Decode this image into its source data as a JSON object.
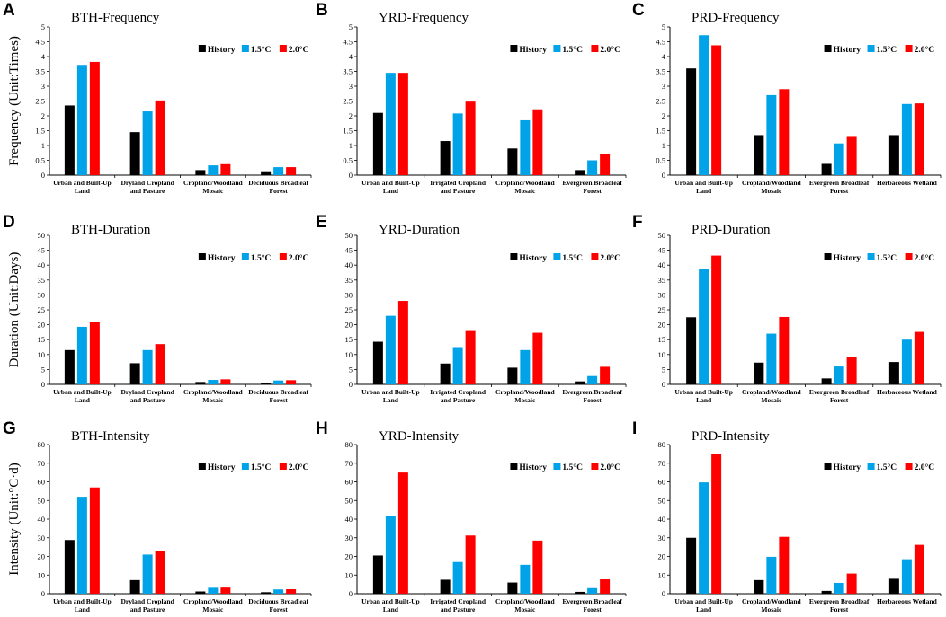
{
  "colors": {
    "History": "#000000",
    "1.5°C": "#00a2e8",
    "2.0°C": "#ff0000"
  },
  "ylabels": [
    "Frequency (Unit:Times)",
    "Duration (Unit:Days)",
    "Intensity (Unit:°C·d)"
  ],
  "chart_data": [
    {
      "letter": "A",
      "type": "bar",
      "title": "BTH-Frequency",
      "ylim": [
        0,
        5
      ],
      "yticks": [
        "0",
        "0.5",
        "1",
        "1.5",
        "2",
        "2.5",
        "3",
        "3.5",
        "4",
        "4.5",
        "5"
      ],
      "categories": [
        [
          "Urban and Built-Up",
          "Land"
        ],
        [
          "Dryland Cropland",
          "and Pasture"
        ],
        [
          "Cropland/Woodland",
          "Mosaic"
        ],
        [
          "Deciduous Broadleaf",
          "Forest"
        ]
      ],
      "series": [
        {
          "name": "History",
          "values": [
            2.35,
            1.45,
            0.17,
            0.13
          ]
        },
        {
          "name": "1.5°C",
          "values": [
            3.72,
            2.15,
            0.33,
            0.27
          ]
        },
        {
          "name": "2.0°C",
          "values": [
            3.82,
            2.52,
            0.37,
            0.27
          ]
        }
      ]
    },
    {
      "letter": "B",
      "type": "bar",
      "title": "YRD-Frequency",
      "ylim": [
        0,
        5
      ],
      "yticks": [
        "0",
        "0.5",
        "1",
        "1.5",
        "2",
        "2.5",
        "3",
        "3.5",
        "4",
        "4.5",
        "5"
      ],
      "categories": [
        [
          "Urban and Built-Up",
          "Land"
        ],
        [
          "Irrigated Cropland",
          "and Pasture"
        ],
        [
          "Cropland/Woodland",
          "Mosaic"
        ],
        [
          "Evergreen Broadleaf",
          "Forest"
        ]
      ],
      "series": [
        {
          "name": "History",
          "values": [
            2.1,
            1.15,
            0.9,
            0.17
          ]
        },
        {
          "name": "1.5°C",
          "values": [
            3.45,
            2.08,
            1.85,
            0.5
          ]
        },
        {
          "name": "2.0°C",
          "values": [
            3.45,
            2.48,
            2.22,
            0.72
          ]
        }
      ]
    },
    {
      "letter": "C",
      "type": "bar",
      "title": "PRD-Frequency",
      "ylim": [
        0,
        5
      ],
      "yticks": [
        "0",
        "0.5",
        "1",
        "1.5",
        "2",
        "2.5",
        "3",
        "3.5",
        "4",
        "4.5",
        "5"
      ],
      "categories": [
        [
          "Urban and Built-Up",
          "Land"
        ],
        [
          "Cropland/Woodland",
          "Mosaic"
        ],
        [
          "Evergreen Broadleaf",
          "Forest"
        ],
        [
          "Herbaceous Wetland"
        ]
      ],
      "series": [
        {
          "name": "History",
          "values": [
            3.6,
            1.35,
            0.38,
            1.35
          ]
        },
        {
          "name": "1.5°C",
          "values": [
            4.72,
            2.7,
            1.07,
            2.4
          ]
        },
        {
          "name": "2.0°C",
          "values": [
            4.38,
            2.9,
            1.32,
            2.42
          ]
        }
      ]
    },
    {
      "letter": "D",
      "type": "bar",
      "title": "BTH-Duration",
      "ylim": [
        0,
        50
      ],
      "yticks": [
        "0",
        "5",
        "10",
        "15",
        "20",
        "25",
        "30",
        "35",
        "40",
        "45",
        "50"
      ],
      "categories": [
        [
          "Urban and Built-Up",
          "Land"
        ],
        [
          "Dryland Cropland",
          "and Pasture"
        ],
        [
          "Cropland/Woodland",
          "Mosaic"
        ],
        [
          "Deciduous Broadleaf",
          "Forest"
        ]
      ],
      "series": [
        {
          "name": "History",
          "values": [
            11.5,
            7.1,
            0.8,
            0.6
          ]
        },
        {
          "name": "1.5°C",
          "values": [
            19.3,
            11.5,
            1.5,
            1.3
          ]
        },
        {
          "name": "2.0°C",
          "values": [
            20.8,
            13.5,
            1.7,
            1.4
          ]
        }
      ]
    },
    {
      "letter": "E",
      "type": "bar",
      "title": "YRD-Duration",
      "ylim": [
        0,
        50
      ],
      "yticks": [
        "0",
        "5",
        "10",
        "15",
        "20",
        "25",
        "30",
        "35",
        "40",
        "45",
        "50"
      ],
      "categories": [
        [
          "Urban and Built-Up",
          "Land"
        ],
        [
          "Irrigated Cropland",
          "and Pasture"
        ],
        [
          "Cropland/Woodland",
          "Mosaic"
        ],
        [
          "Evergreen Broadleaf",
          "Forest"
        ]
      ],
      "series": [
        {
          "name": "History",
          "values": [
            14.3,
            7.0,
            5.6,
            1.0
          ]
        },
        {
          "name": "1.5°C",
          "values": [
            23.0,
            12.5,
            11.5,
            2.8
          ]
        },
        {
          "name": "2.0°C",
          "values": [
            28.0,
            18.2,
            17.3,
            5.9
          ]
        }
      ]
    },
    {
      "letter": "F",
      "type": "bar",
      "title": "PRD-Duration",
      "ylim": [
        0,
        50
      ],
      "yticks": [
        "0",
        "5",
        "10",
        "15",
        "20",
        "25",
        "30",
        "35",
        "40",
        "45",
        "50"
      ],
      "categories": [
        [
          "Urban and Built-Up",
          "Land"
        ],
        [
          "Cropland/Woodland",
          "Mosaic"
        ],
        [
          "Evergreen Broadleaf",
          "Forest"
        ],
        [
          "Herbaceous Wetland"
        ]
      ],
      "series": [
        {
          "name": "History",
          "values": [
            22.5,
            7.3,
            2.0,
            7.5
          ]
        },
        {
          "name": "1.5°C",
          "values": [
            38.7,
            17.0,
            6.0,
            15.0
          ]
        },
        {
          "name": "2.0°C",
          "values": [
            43.2,
            22.6,
            9.1,
            17.6
          ]
        }
      ]
    },
    {
      "letter": "G",
      "type": "bar",
      "title": "BTH-Intensity",
      "ylim": [
        0,
        80
      ],
      "yticks": [
        "0",
        "10",
        "20",
        "30",
        "40",
        "50",
        "60",
        "70",
        "80"
      ],
      "categories": [
        [
          "Urban and Built-Up",
          "Land"
        ],
        [
          "Dryland Cropland",
          "and Pasture"
        ],
        [
          "Cropland/Woodland",
          "Mosaic"
        ],
        [
          "Deciduous Broadleaf",
          "Forest"
        ]
      ],
      "series": [
        {
          "name": "History",
          "values": [
            28.8,
            7.3,
            1.2,
            0.8
          ]
        },
        {
          "name": "1.5°C",
          "values": [
            52.0,
            21.0,
            3.2,
            2.3
          ]
        },
        {
          "name": "2.0°C",
          "values": [
            57.0,
            23.0,
            3.3,
            2.4
          ]
        }
      ]
    },
    {
      "letter": "H",
      "type": "bar",
      "title": "YRD-Intensity",
      "ylim": [
        0,
        80
      ],
      "yticks": [
        "0",
        "10",
        "20",
        "30",
        "40",
        "50",
        "60",
        "70",
        "80"
      ],
      "categories": [
        [
          "Urban and Built-Up",
          "Land"
        ],
        [
          "Irrigated Cropland",
          "and Pasture"
        ],
        [
          "Cropland/Woodland",
          "Mosaic"
        ],
        [
          "Evergreen Broadleaf",
          "Forest"
        ]
      ],
      "series": [
        {
          "name": "History",
          "values": [
            20.5,
            7.5,
            6.0,
            1.0
          ]
        },
        {
          "name": "1.5°C",
          "values": [
            41.5,
            17.0,
            15.5,
            3.0
          ]
        },
        {
          "name": "2.0°C",
          "values": [
            65.0,
            31.2,
            28.5,
            7.7
          ]
        }
      ]
    },
    {
      "letter": "I",
      "type": "bar",
      "title": "PRD-Intensity",
      "ylim": [
        0,
        80
      ],
      "yticks": [
        "0",
        "10",
        "20",
        "30",
        "40",
        "50",
        "60",
        "70",
        "80"
      ],
      "categories": [
        [
          "Urban and Built-Up",
          "Land"
        ],
        [
          "Cropland/Woodland",
          "Mosaic"
        ],
        [
          "Evergreen Broadleaf",
          "Forest"
        ],
        [
          "Herbaceous Wetland"
        ]
      ],
      "series": [
        {
          "name": "History",
          "values": [
            30.0,
            7.3,
            1.5,
            8.0
          ]
        },
        {
          "name": "1.5°C",
          "values": [
            59.7,
            19.8,
            5.8,
            18.5
          ]
        },
        {
          "name": "2.0°C",
          "values": [
            75.0,
            30.5,
            10.8,
            26.2
          ]
        }
      ]
    }
  ]
}
